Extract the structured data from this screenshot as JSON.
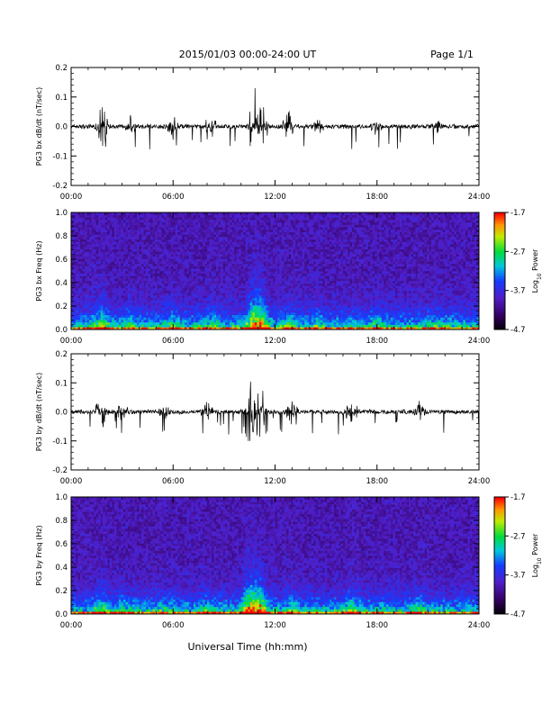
{
  "header": {
    "date_range": "2015/01/03  00:00-24:00 UT",
    "page": "Page 1/1"
  },
  "xaxis_title": "Universal Time (hh:mm)",
  "time_ticks": [
    "00:00",
    "06:00",
    "12:00",
    "18:00",
    "24:00"
  ],
  "colorbar": {
    "title": "Log10 Power",
    "title_main": "Log",
    "title_sub": "10",
    "title_tail": " Power",
    "ticks": [
      "-1.7",
      "-2.7",
      "-3.7",
      "-4.7"
    ]
  },
  "chart_data": [
    {
      "type": "line",
      "ylabel": "PG3 bx dB/dt (nT/sec)",
      "x_range_hours": [
        0,
        24
      ],
      "ylim": [
        -0.2,
        0.2
      ],
      "yticks": [
        "0.2",
        "0.1",
        "0.0",
        "-0.1",
        "-0.2"
      ],
      "activity_events": [
        {
          "t": 1.8,
          "amp": 0.09
        },
        {
          "t": 3.5,
          "amp": 0.04
        },
        {
          "t": 6.0,
          "amp": 0.05
        },
        {
          "t": 8.2,
          "amp": 0.05
        },
        {
          "t": 10.8,
          "amp": 0.15
        },
        {
          "t": 11.2,
          "amp": 0.1
        },
        {
          "t": 12.8,
          "amp": 0.06
        },
        {
          "t": 14.5,
          "amp": 0.04
        },
        {
          "t": 18.0,
          "amp": 0.04
        },
        {
          "t": 21.5,
          "amp": 0.03
        }
      ]
    },
    {
      "type": "heatmap",
      "ylabel": "PG3 bx Freq (Hz)",
      "x_range_hours": [
        0,
        24
      ],
      "ylim": [
        0,
        1
      ],
      "yticks": [
        "1.0",
        "0.8",
        "0.6",
        "0.4",
        "0.2",
        "0.0"
      ],
      "zlim_log10_power": [
        -4.7,
        -1.7
      ]
    },
    {
      "type": "line",
      "ylabel": "PG3 by dB/dt (nT/sec)",
      "x_range_hours": [
        0,
        24
      ],
      "ylim": [
        -0.2,
        0.2
      ],
      "yticks": [
        "0.2",
        "0.1",
        "0.0",
        "-0.1",
        "-0.2"
      ],
      "activity_events": [
        {
          "t": 1.8,
          "amp": 0.07
        },
        {
          "t": 3.0,
          "amp": 0.04
        },
        {
          "t": 5.5,
          "amp": 0.03
        },
        {
          "t": 8.0,
          "amp": 0.04
        },
        {
          "t": 10.5,
          "amp": 0.16
        },
        {
          "t": 11.1,
          "amp": 0.14
        },
        {
          "t": 13.0,
          "amp": 0.05
        },
        {
          "t": 16.5,
          "amp": 0.06
        },
        {
          "t": 20.5,
          "amp": 0.04
        }
      ]
    },
    {
      "type": "heatmap",
      "ylabel": "PG3 by Freq (Hz)",
      "x_range_hours": [
        0,
        24
      ],
      "ylim": [
        0,
        1
      ],
      "yticks": [
        "1.0",
        "0.8",
        "0.6",
        "0.4",
        "0.2",
        "0.0"
      ],
      "zlim_log10_power": [
        -4.7,
        -1.7
      ]
    }
  ]
}
